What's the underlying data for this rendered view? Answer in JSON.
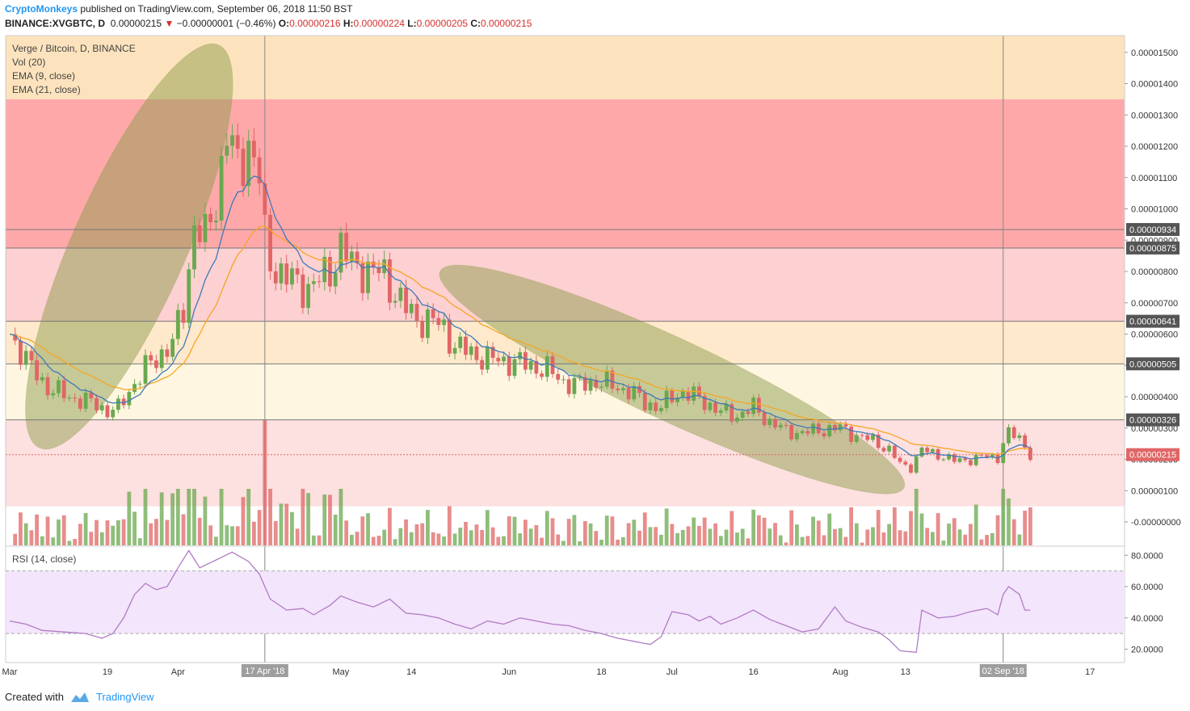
{
  "header": {
    "author": "CryptoMonkeys",
    "published": "published on TradingView.com, September 06, 2018 11:50 BST",
    "symbol": "BINANCE:XVGBTC, D",
    "last": "0.00000215",
    "change": "−0.00000001 (−0.46%)",
    "o_label": "O:",
    "o": "0.00000216",
    "h_label": "H:",
    "h": "0.00000224",
    "l_label": "L:",
    "l": "0.00000205",
    "c_label": "C:",
    "c": "0.00000215"
  },
  "legend": {
    "title": "Verge / Bitcoin, D, BINANCE",
    "vol": "Vol (20)",
    "ema9": "EMA (9, close)",
    "ema21": "EMA (21, close)",
    "rsi": "RSI (14, close)"
  },
  "footer": {
    "created": "Created with",
    "brand": "TradingView"
  },
  "colors": {
    "up": "#6aa84f",
    "down": "#e06666",
    "ema9": "#3d7ab8",
    "ema21": "#f5a623",
    "rsi": "#b07cc6",
    "ellipse": "#8a9a4a"
  },
  "chart_data": {
    "type": "candlestick",
    "ylim": [
      -1e-07,
      1.6e-06
    ],
    "price_ticks": [
      "0.00001500",
      "0.00001400",
      "0.00001300",
      "0.00001200",
      "0.00001100",
      "0.00001000",
      "0.00000900",
      "0.00000800",
      "0.00000700",
      "0.00000600",
      "0.00000500",
      "0.00000400",
      "0.00000300",
      "0.00000200",
      "0.00000100",
      "-0.00000000"
    ],
    "rsi_ticks": [
      "80.0000",
      "60.0000",
      "40.0000",
      "20.0000"
    ],
    "x_ticks": [
      {
        "label": "Mar",
        "day": 0
      },
      {
        "label": "19",
        "day": 18
      },
      {
        "label": "Apr",
        "day": 31
      },
      {
        "label": "May",
        "day": 61
      },
      {
        "label": "14",
        "day": 74
      },
      {
        "label": "Jun",
        "day": 92
      },
      {
        "label": "18",
        "day": 109
      },
      {
        "label": "Jul",
        "day": 122
      },
      {
        "label": "16",
        "day": 137
      },
      {
        "label": "Aug",
        "day": 153
      },
      {
        "label": "13",
        "day": 165
      },
      {
        "label": "Sep",
        "day": 184
      },
      {
        "label": "17",
        "day": 199
      }
    ],
    "crosshair_labels": [
      {
        "label": "17 Apr '18",
        "day": 47
      },
      {
        "label": "02 Sep '18",
        "day": 183
      }
    ],
    "marked_levels": [
      {
        "label": "0.00000934",
        "value": 9.34e-06
      },
      {
        "label": "0.00000875",
        "value": 8.75e-06
      },
      {
        "label": "0.00000641",
        "value": 6.41e-06
      },
      {
        "label": "0.00000505",
        "value": 5.05e-06
      },
      {
        "label": "0.00000326",
        "value": 3.26e-06
      },
      {
        "label": "0.00000215",
        "value": 2.15e-06
      }
    ],
    "zones": [
      {
        "from": 1.35e-05,
        "to": 1.6e-05,
        "color": "#fde3bd"
      },
      {
        "from": 8.75e-06,
        "to": 1.35e-05,
        "color": "#fea8aa"
      },
      {
        "from": 6.41e-06,
        "to": 8.75e-06,
        "color": "#fdd0d1"
      },
      {
        "from": 5.05e-06,
        "to": 6.41e-06,
        "color": "#fee9cc"
      },
      {
        "from": 3.26e-06,
        "to": 5.05e-06,
        "color": "#fef6e0"
      },
      {
        "from": 5e-07,
        "to": 3.26e-06,
        "color": "#fde0e0"
      }
    ],
    "key_closes": [
      [
        0,
        6.0
      ],
      [
        2,
        5.5
      ],
      [
        4,
        4.9
      ],
      [
        7,
        4.3
      ],
      [
        10,
        4.05
      ],
      [
        13,
        3.9
      ],
      [
        16,
        3.75
      ],
      [
        18,
        3.55
      ],
      [
        20,
        3.6
      ],
      [
        22,
        4.2
      ],
      [
        25,
        4.9
      ],
      [
        28,
        5.4
      ],
      [
        30,
        5.7
      ],
      [
        32,
        6.8
      ],
      [
        34,
        9.5
      ],
      [
        36,
        9.0
      ],
      [
        38,
        10.3
      ],
      [
        40,
        12.5
      ],
      [
        42,
        11.2
      ],
      [
        44,
        12.2
      ],
      [
        46,
        11.0
      ],
      [
        47,
        9.0
      ],
      [
        48,
        8.3
      ],
      [
        51,
        7.8
      ],
      [
        53,
        7.6
      ],
      [
        55,
        7.5
      ],
      [
        57,
        7.7
      ],
      [
        59,
        8.0
      ],
      [
        61,
        8.8
      ],
      [
        63,
        8.2
      ],
      [
        65,
        8.1
      ],
      [
        67,
        8.0
      ],
      [
        69,
        7.9
      ],
      [
        71,
        7.3
      ],
      [
        73,
        6.8
      ],
      [
        75,
        6.5
      ],
      [
        78,
        6.4
      ],
      [
        80,
        6.2
      ],
      [
        82,
        5.6
      ],
      [
        85,
        5.4
      ],
      [
        88,
        5.2
      ],
      [
        91,
        5.15
      ],
      [
        93,
        5.1
      ],
      [
        96,
        5.0
      ],
      [
        99,
        4.85
      ],
      [
        102,
        4.5
      ],
      [
        105,
        4.35
      ],
      [
        108,
        4.5
      ],
      [
        111,
        4.35
      ],
      [
        114,
        4.2
      ],
      [
        117,
        3.8
      ],
      [
        120,
        3.65
      ],
      [
        122,
        4.0
      ],
      [
        124,
        4.15
      ],
      [
        126,
        4.0
      ],
      [
        128,
        3.85
      ],
      [
        131,
        3.5
      ],
      [
        134,
        3.4
      ],
      [
        137,
        3.65
      ],
      [
        140,
        3.2
      ],
      [
        143,
        2.9
      ],
      [
        146,
        2.85
      ],
      [
        150,
        2.95
      ],
      [
        153,
        3.0
      ],
      [
        156,
        2.75
      ],
      [
        159,
        2.6
      ],
      [
        162,
        2.3
      ],
      [
        164,
        1.85
      ],
      [
        166,
        1.75
      ],
      [
        168,
        2.3
      ],
      [
        171,
        2.15
      ],
      [
        174,
        1.95
      ],
      [
        177,
        2.0
      ],
      [
        180,
        2.1
      ],
      [
        182,
        2.05
      ],
      [
        183,
        2.55
      ],
      [
        184,
        2.8
      ],
      [
        186,
        2.7
      ],
      [
        188,
        2.15
      ]
    ],
    "volume_spike_day": 47,
    "rsi_key": [
      [
        0,
        38
      ],
      [
        3,
        36
      ],
      [
        6,
        32
      ],
      [
        10,
        31
      ],
      [
        14,
        30
      ],
      [
        17,
        27
      ],
      [
        19,
        30
      ],
      [
        21,
        40
      ],
      [
        23,
        55
      ],
      [
        25,
        62
      ],
      [
        27,
        58
      ],
      [
        29,
        60
      ],
      [
        31,
        72
      ],
      [
        33,
        83
      ],
      [
        35,
        72
      ],
      [
        38,
        77
      ],
      [
        41,
        82
      ],
      [
        44,
        76
      ],
      [
        46,
        68
      ],
      [
        47,
        60
      ],
      [
        48,
        52
      ],
      [
        51,
        45
      ],
      [
        54,
        46
      ],
      [
        56,
        42
      ],
      [
        59,
        48
      ],
      [
        61,
        54
      ],
      [
        64,
        50
      ],
      [
        67,
        47
      ],
      [
        70,
        52
      ],
      [
        73,
        43
      ],
      [
        76,
        42
      ],
      [
        79,
        40
      ],
      [
        82,
        36
      ],
      [
        85,
        33
      ],
      [
        88,
        38
      ],
      [
        91,
        36
      ],
      [
        94,
        40
      ],
      [
        97,
        38
      ],
      [
        100,
        36
      ],
      [
        103,
        35
      ],
      [
        106,
        32
      ],
      [
        109,
        30
      ],
      [
        112,
        27
      ],
      [
        115,
        25
      ],
      [
        118,
        23
      ],
      [
        120,
        28
      ],
      [
        122,
        44
      ],
      [
        125,
        42
      ],
      [
        127,
        38
      ],
      [
        129,
        41
      ],
      [
        131,
        36
      ],
      [
        134,
        40
      ],
      [
        137,
        45
      ],
      [
        140,
        39
      ],
      [
        143,
        35
      ],
      [
        146,
        31
      ],
      [
        149,
        33
      ],
      [
        152,
        47
      ],
      [
        154,
        38
      ],
      [
        157,
        34
      ],
      [
        160,
        31
      ],
      [
        162,
        26
      ],
      [
        164,
        19
      ],
      [
        167,
        18
      ],
      [
        168,
        45
      ],
      [
        171,
        40
      ],
      [
        174,
        41
      ],
      [
        177,
        44
      ],
      [
        180,
        46
      ],
      [
        182,
        42
      ],
      [
        183,
        55
      ],
      [
        184,
        60
      ],
      [
        186,
        55
      ],
      [
        187,
        45
      ],
      [
        188,
        45
      ]
    ],
    "ellipses": [
      {
        "cx_day": 22,
        "cy": 8.8e-06,
        "rx": 0.62,
        "ry": 0.16,
        "angle": -66
      },
      {
        "cx_day": 122,
        "cy": 4.55e-06,
        "rx": 0.72,
        "ry": 0.115,
        "angle": 25
      }
    ]
  }
}
